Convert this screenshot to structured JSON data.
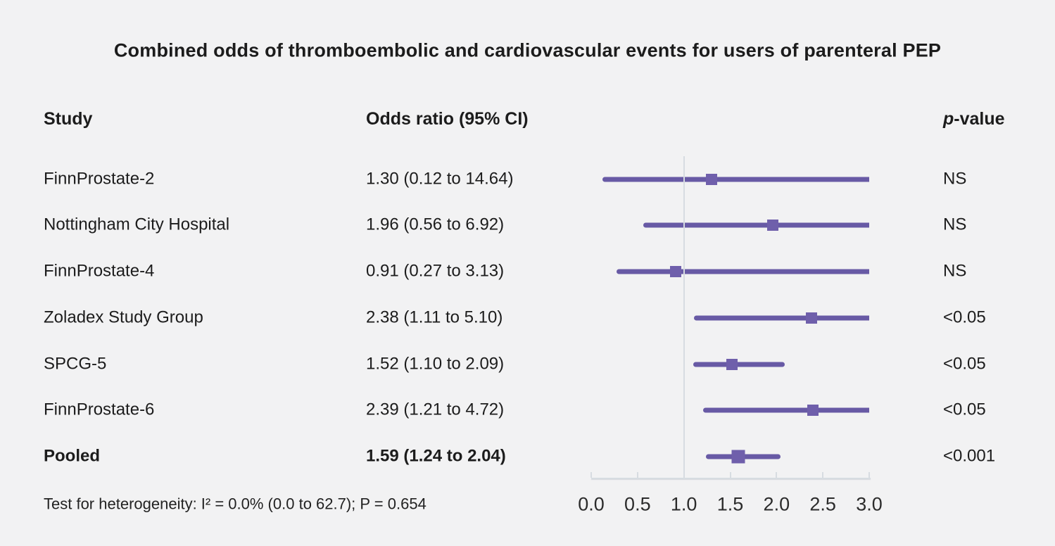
{
  "title": "Combined odds of thromboembolic and cardiovascular events for users of parenteral PEP",
  "columns": {
    "study": "Study",
    "odds_ratio": "Odds ratio (95% CI)",
    "p_italic": "p",
    "p_rest": "-value"
  },
  "footer_note": "Test for heterogeneity: I² = 0.0% (0.0 to 62.7); P = 0.654",
  "colors": {
    "background": "#f2f2f3",
    "ci_line": "#685aa5",
    "marker": "#6f5fab",
    "axis": "#d7dce1",
    "text": "#1c1c1c"
  },
  "chart_data": {
    "type": "forest",
    "title": "Combined odds of thromboembolic and cardiovascular events for users of parenteral PEP",
    "xlim": [
      0,
      3
    ],
    "x_ticks": [
      "0.0",
      "0.5",
      "1.0",
      "1.5",
      "2.0",
      "2.5",
      "3.0"
    ],
    "reference_line": 1.0,
    "legend_position": "none",
    "grid": false,
    "rows": [
      {
        "study": "FinnProstate-2",
        "or_label": "1.30 (0.12 to 14.64)",
        "estimate": 1.3,
        "ci_low": 0.12,
        "ci_high": 14.64,
        "p_value": "NS",
        "pooled": false
      },
      {
        "study": "Nottingham City Hospital",
        "or_label": "1.96 (0.56 to 6.92)",
        "estimate": 1.96,
        "ci_low": 0.56,
        "ci_high": 6.92,
        "p_value": "NS",
        "pooled": false
      },
      {
        "study": "FinnProstate-4",
        "or_label": "0.91 (0.27 to 3.13)",
        "estimate": 0.91,
        "ci_low": 0.27,
        "ci_high": 3.13,
        "p_value": "NS",
        "pooled": false
      },
      {
        "study": "Zoladex Study Group",
        "or_label": "2.38 (1.11 to 5.10)",
        "estimate": 2.38,
        "ci_low": 1.11,
        "ci_high": 5.1,
        "p_value": "<0.05",
        "pooled": false
      },
      {
        "study": "SPCG-5",
        "or_label": "1.52 (1.10 to 2.09)",
        "estimate": 1.52,
        "ci_low": 1.1,
        "ci_high": 2.09,
        "p_value": "<0.05",
        "pooled": false
      },
      {
        "study": "FinnProstate-6",
        "or_label": "2.39 (1.21 to 4.72)",
        "estimate": 2.39,
        "ci_low": 1.21,
        "ci_high": 4.72,
        "p_value": "<0.05",
        "pooled": false
      },
      {
        "study": "Pooled",
        "or_label": "1.59 (1.24 to 2.04)",
        "estimate": 1.59,
        "ci_low": 1.24,
        "ci_high": 2.04,
        "p_value": "<0.001",
        "pooled": true
      }
    ]
  }
}
